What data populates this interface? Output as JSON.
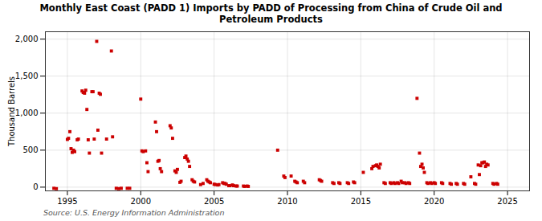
{
  "chart_data": {
    "type": "scatter",
    "title": "Monthly East Coast (PADD 1) Imports by PADD of Processing from China of Crude Oil and\nPetroleum Products",
    "y_label": "Thousand Barrels",
    "annotations": [
      "Source: U.S. Energy Information Administration"
    ],
    "color": "#cc0000",
    "marker": "square",
    "grid": true,
    "xlim": [
      1993.5,
      2026.5
    ],
    "ylim": [
      -50,
      2100
    ],
    "xticks": [
      1995,
      2000,
      2005,
      2010,
      2015,
      2020,
      2025
    ],
    "yticks": [
      0,
      500,
      {
        "value": 1000,
        "label": "1,000"
      },
      {
        "value": 1500,
        "label": "1,500"
      },
      {
        "value": 2000,
        "label": "2,000"
      }
    ],
    "x": [
      1994.08,
      1994.25,
      1995.0,
      1995.08,
      1995.17,
      1995.25,
      1995.33,
      1995.42,
      1995.5,
      1995.67,
      1995.75,
      1996.0,
      1996.08,
      1996.17,
      1996.25,
      1996.33,
      1996.42,
      1996.5,
      1996.67,
      1996.75,
      1996.83,
      1997.0,
      1997.08,
      1997.17,
      1997.25,
      1997.33,
      1997.67,
      1998.0,
      1998.08,
      1998.33,
      1998.5,
      1998.67,
      1999.08,
      1999.25,
      2000.0,
      2000.08,
      2000.17,
      2000.33,
      2000.42,
      2000.5,
      2001.0,
      2001.08,
      2001.17,
      2001.25,
      2001.33,
      2001.42,
      2002.0,
      2002.08,
      2002.17,
      2002.33,
      2002.42,
      2002.5,
      2002.67,
      2002.75,
      2003.0,
      2003.08,
      2003.17,
      2003.25,
      2003.33,
      2003.5,
      2003.58,
      2003.67,
      2004.08,
      2004.25,
      2004.5,
      2004.58,
      2004.67,
      2004.75,
      2005.0,
      2005.08,
      2005.25,
      2005.33,
      2005.58,
      2005.67,
      2005.75,
      2005.83,
      2006.0,
      2006.08,
      2006.25,
      2006.33,
      2006.5,
      2006.58,
      2007.0,
      2007.08,
      2007.25,
      2007.33,
      2009.33,
      2009.75,
      2009.83,
      2010.25,
      2010.5,
      2010.58,
      2010.67,
      2011.08,
      2011.17,
      2012.17,
      2012.25,
      2012.33,
      2013.08,
      2013.17,
      2013.5,
      2013.58,
      2014.08,
      2014.17,
      2014.5,
      2014.58,
      2015.17,
      2015.75,
      2015.83,
      2016.0,
      2016.08,
      2016.17,
      2016.25,
      2016.33,
      2016.58,
      2016.67,
      2017.0,
      2017.08,
      2017.25,
      2017.33,
      2017.5,
      2017.58,
      2017.75,
      2017.83,
      2018.0,
      2018.08,
      2018.25,
      2018.33,
      2018.83,
      2019.0,
      2019.08,
      2019.17,
      2019.25,
      2019.33,
      2019.5,
      2019.58,
      2019.75,
      2019.83,
      2020.0,
      2020.08,
      2020.5,
      2020.58,
      2021.08,
      2021.17,
      2021.5,
      2021.58,
      2022.0,
      2022.08,
      2022.5,
      2022.75,
      2022.83,
      2023.0,
      2023.08,
      2023.17,
      2023.25,
      2023.33,
      2023.42,
      2023.5,
      2023.58,
      2023.67,
      2024.0,
      2024.08,
      2024.25,
      2024.33
    ],
    "values": [
      -15,
      -20,
      645,
      660,
      750,
      520,
      470,
      500,
      480,
      640,
      650,
      1300,
      1280,
      1270,
      1310,
      1050,
      640,
      460,
      1290,
      1290,
      650,
      1970,
      770,
      1270,
      1255,
      460,
      650,
      1840,
      680,
      -15,
      -20,
      -15,
      -15,
      -15,
      1190,
      490,
      480,
      490,
      330,
      210,
      880,
      750,
      350,
      360,
      250,
      210,
      830,
      800,
      660,
      220,
      200,
      240,
      65,
      80,
      400,
      420,
      380,
      350,
      280,
      100,
      80,
      70,
      35,
      50,
      100,
      80,
      70,
      60,
      40,
      35,
      30,
      35,
      60,
      50,
      50,
      40,
      20,
      20,
      30,
      20,
      15,
      15,
      15,
      10,
      15,
      10,
      500,
      150,
      130,
      150,
      80,
      70,
      60,
      80,
      60,
      100,
      90,
      80,
      60,
      50,
      60,
      50,
      60,
      50,
      70,
      60,
      200,
      250,
      280,
      290,
      300,
      280,
      260,
      310,
      60,
      50,
      60,
      50,
      60,
      50,
      60,
      50,
      80,
      60,
      60,
      50,
      60,
      50,
      1200,
      460,
      280,
      310,
      260,
      200,
      60,
      50,
      60,
      50,
      60,
      50,
      60,
      50,
      50,
      40,
      50,
      40,
      50,
      40,
      140,
      50,
      40,
      300,
      170,
      290,
      330,
      330,
      340,
      280,
      310,
      300,
      50,
      40,
      50,
      40
    ]
  }
}
